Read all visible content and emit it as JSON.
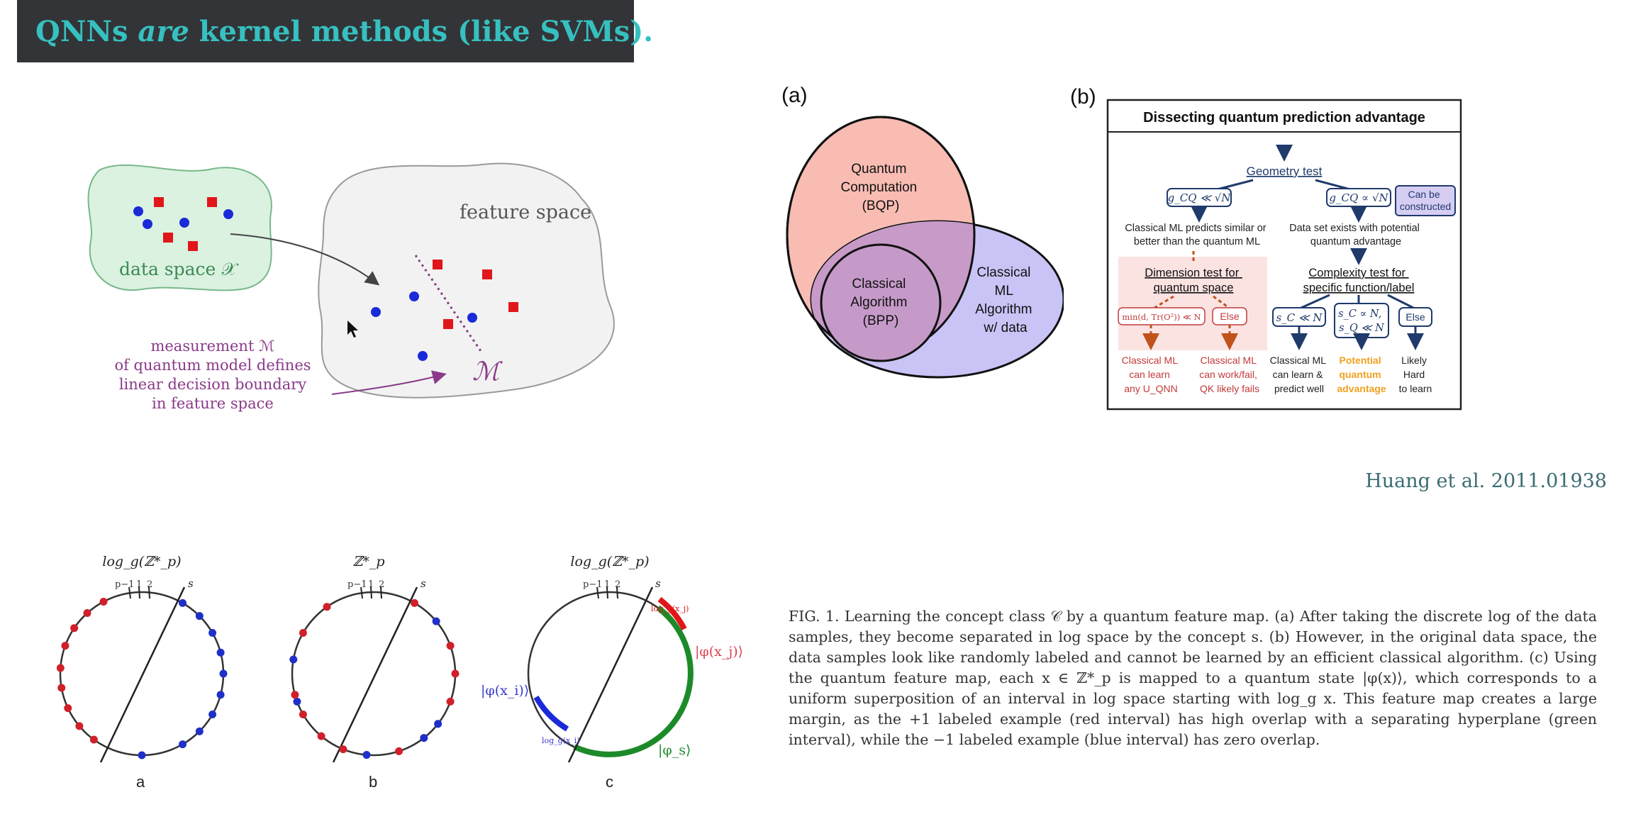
{
  "slide": {
    "title_prefix": "QNNs ",
    "title_emph": "are",
    "title_suffix": " kernel methods (like SVMs).",
    "citation": "Huang et al. 2011.01938"
  },
  "kernel_figure": {
    "data_space_label": "data space 𝒳",
    "feature_space_label": "feature space",
    "measurement_label": "ℳ",
    "annotation_lines": [
      "measurement ℳ",
      "of quantum model defines",
      "linear decision boundary",
      "in feature space"
    ]
  },
  "venn": {
    "panel_label": "(a)",
    "bqp_lines": [
      "Quantum",
      "Computation",
      "(BQP)"
    ],
    "bpp_lines": [
      "Classical",
      "Algorithm",
      "(BPP)"
    ],
    "ml_lines": [
      "Classical",
      "ML",
      "Algorithm",
      "w/ data"
    ],
    "colors": {
      "bqp": "#f8bcb3",
      "ml": "#c9c4f6",
      "overlap": "#c79ac8"
    }
  },
  "flowchart": {
    "panel_label": "(b)",
    "header": "Dissecting quantum prediction advantage",
    "geometry_test": "Geometry test",
    "left_condition": "g_CQ ≪ √N",
    "right_condition": "g_CQ ∝ √N",
    "can_be_constructed": [
      "Can be",
      "constructed"
    ],
    "left_result": [
      "Classical ML predicts similar or",
      "better than the quantum ML"
    ],
    "right_result": [
      "Data set exists with potential",
      "quantum advantage"
    ],
    "dimension_test": [
      "Dimension test for",
      "quantum space"
    ],
    "complexity_test": [
      "Complexity test for",
      "specific function/label"
    ],
    "dim_condition": "min(d, Tr(O²)) ≪ N",
    "else_label": "Else",
    "sc_condition": "s_C ≪ N",
    "sc_sq_condition": [
      "s_C ∝ N,",
      "s_Q ≪ N"
    ],
    "outcome_1": [
      "Classical ML",
      "can learn",
      "any U_QNN"
    ],
    "outcome_2": [
      "Classical ML",
      "can work/fail,",
      "QK likely fails"
    ],
    "outcome_3": [
      "Classical ML",
      "can learn &",
      "predict well"
    ],
    "outcome_4": [
      "Potential",
      "quantum",
      "advantage"
    ],
    "outcome_5": [
      "Likely",
      "Hard",
      "to learn"
    ]
  },
  "circles": {
    "panel_a_top": "log_g(ℤ*_p)",
    "panel_b_top": "ℤ*_p",
    "panel_c_top": "log_g(ℤ*_p)",
    "panel_a_label": "a",
    "panel_b_label": "b",
    "panel_c_label": "c",
    "line_label": "s",
    "tick_labels": [
      "p−1",
      "1",
      "2"
    ],
    "phi_i": "|φ(x_i)⟩",
    "phi_j": "|φ(x_j)⟩",
    "phi_s": "|φ_s⟩",
    "log_xi": "log_g(x_i)",
    "log_xj": "log_g(x_j)"
  },
  "caption": {
    "text": "FIG. 1. Learning the concept class 𝒞 by a quantum feature map. (a) After taking the discrete log of the data samples, they become separated in log space by the concept s. (b) However, in the original data space, the data samples look like randomly labeled and cannot be learned by an efficient classical algorithm. (c) Using the quantum feature map, each x ∈ ℤ*_p is mapped to a quantum state |φ(x)⟩, which corresponds to a uniform superposition of an interval in log space starting with log_g x. This feature map creates a large margin, as the +1 labeled example (red interval) has high overlap with a separating hyperplane (green interval), while the −1 labeled example (blue interval) has zero overlap."
  }
}
